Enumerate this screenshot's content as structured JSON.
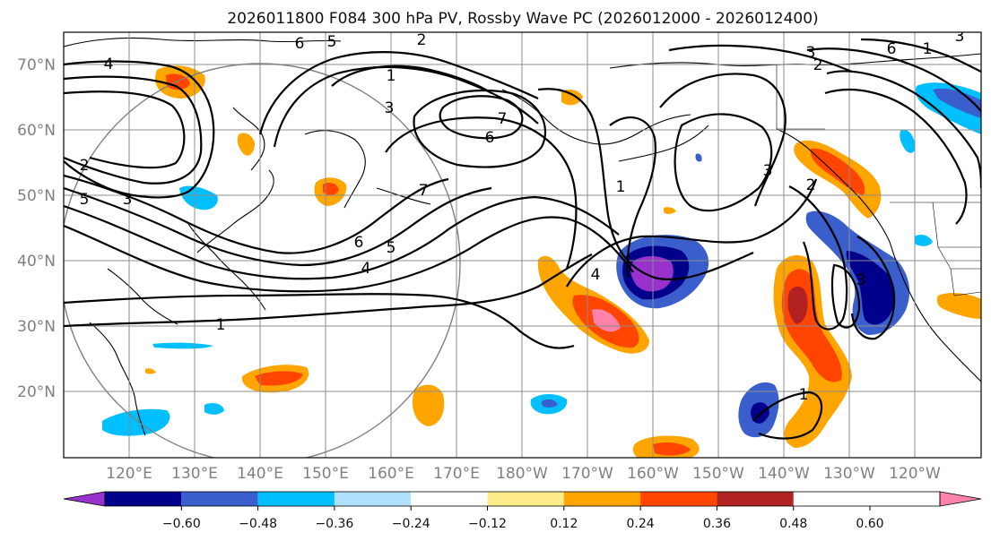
{
  "title": "2026011800 F084 300 hPa PV, Rossby Wave PC (2026012000 - 2026012400)",
  "lat_labels": [
    "70°N",
    "60°N",
    "50°N",
    "40°N",
    "30°N",
    "20°N"
  ],
  "lon_labels": [
    "120°E",
    "130°E",
    "140°E",
    "150°E",
    "160°E",
    "170°E",
    "180°W",
    "170°W",
    "160°W",
    "150°W",
    "140°W",
    "130°W",
    "120°W"
  ],
  "colorbar": {
    "tick_labels": [
      "−0.60",
      "−0.48",
      "−0.36",
      "−0.24",
      "−0.12",
      "0.12",
      "0.24",
      "0.36",
      "0.48",
      "0.60"
    ],
    "colors": [
      "#9932cc",
      "#00008b",
      "#3a5fcd",
      "#00bfff",
      "#b0e2ff",
      "#ffffff",
      "#ffec8b",
      "#ffa500",
      "#ff4500",
      "#b22222",
      "#ff82ab"
    ]
  },
  "contour_labels": [
    "4",
    "6",
    "5",
    "2",
    "1",
    "3",
    "2",
    "5",
    "3",
    "7",
    "6",
    "7",
    "6",
    "5",
    "4",
    "1",
    "4",
    "1",
    "2",
    "3",
    "3",
    "2",
    "6",
    "1",
    "3",
    "3",
    "1"
  ],
  "colors": {
    "grid": "#8c8c8c",
    "axis_label": "#808080",
    "circle": "#808080"
  }
}
